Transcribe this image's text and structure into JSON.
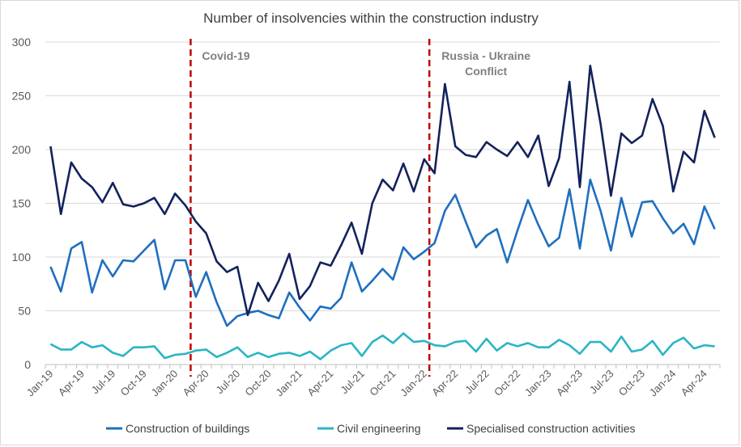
{
  "chart_data": {
    "type": "line",
    "title": "Number of insolvencies within the construction industry",
    "xlabel": "",
    "ylabel": "",
    "ylim": [
      0,
      300
    ],
    "yticks": [
      0,
      50,
      100,
      150,
      200,
      250,
      300
    ],
    "grid": "horizontal",
    "legend_position": "bottom",
    "x": [
      "Jan-19",
      "Feb-19",
      "Mar-19",
      "Apr-19",
      "May-19",
      "Jun-19",
      "Jul-19",
      "Aug-19",
      "Sep-19",
      "Oct-19",
      "Nov-19",
      "Dec-19",
      "Jan-20",
      "Feb-20",
      "Mar-20",
      "Apr-20",
      "May-20",
      "Jun-20",
      "Jul-20",
      "Aug-20",
      "Sep-20",
      "Oct-20",
      "Nov-20",
      "Dec-20",
      "Jan-21",
      "Feb-21",
      "Mar-21",
      "Apr-21",
      "May-21",
      "Jun-21",
      "Jul-21",
      "Aug-21",
      "Sep-21",
      "Oct-21",
      "Nov-21",
      "Dec-21",
      "Jan-22",
      "Feb-22",
      "Mar-22",
      "Apr-22",
      "May-22",
      "Jun-22",
      "Jul-22",
      "Aug-22",
      "Sep-22",
      "Oct-22",
      "Nov-22",
      "Dec-22",
      "Jan-23",
      "Feb-23",
      "Mar-23",
      "Apr-23",
      "May-23",
      "Jun-23",
      "Jul-23",
      "Aug-23",
      "Sep-23",
      "Oct-23",
      "Nov-23",
      "Dec-23",
      "Jan-24",
      "Feb-24",
      "Mar-24",
      "Apr-24",
      "May-24"
    ],
    "xtick_labels": [
      "Jan-19",
      "Apr-19",
      "Jul-19",
      "Oct-19",
      "Jan-20",
      "Apr-20",
      "Jul-20",
      "Oct-20",
      "Jan-21",
      "Apr-21",
      "Jul-21",
      "Oct-21",
      "Jan-22",
      "Apr-22",
      "Jul-22",
      "Oct-22",
      "Jan-23",
      "Apr-23",
      "Jul-23",
      "Oct-23",
      "Jan-24",
      "Apr-24"
    ],
    "series": [
      {
        "name": "Construction of buildings",
        "color": "#1f6fbf",
        "values": [
          91,
          68,
          108,
          114,
          67,
          97,
          82,
          97,
          96,
          106,
          116,
          70,
          97,
          97,
          63,
          86,
          58,
          36,
          45,
          48,
          50,
          46,
          43,
          67,
          53,
          41,
          54,
          52,
          62,
          95,
          68,
          78,
          89,
          79,
          109,
          98,
          105,
          113,
          143,
          158,
          133,
          109,
          120,
          126,
          95,
          125,
          153,
          130,
          110,
          118,
          163,
          108,
          172,
          143,
          106,
          155,
          119,
          151,
          152,
          136,
          122,
          131,
          112,
          147,
          126
        ]
      },
      {
        "name": "Civil engineering",
        "color": "#2ab5c5",
        "values": [
          19,
          14,
          14,
          21,
          16,
          18,
          11,
          8,
          16,
          16,
          17,
          6,
          9,
          10,
          13,
          14,
          7,
          11,
          16,
          7,
          11,
          7,
          10,
          11,
          8,
          12,
          5,
          13,
          18,
          20,
          8,
          21,
          27,
          20,
          29,
          21,
          22,
          18,
          17,
          21,
          22,
          12,
          24,
          13,
          20,
          17,
          20,
          16,
          16,
          23,
          18,
          10,
          21,
          21,
          12,
          26,
          12,
          14,
          22,
          9,
          20,
          25,
          15,
          18,
          17
        ]
      },
      {
        "name": "Specialised construction activities",
        "color": "#13225c",
        "values": [
          203,
          140,
          188,
          173,
          165,
          151,
          169,
          149,
          147,
          150,
          155,
          140,
          159,
          148,
          133,
          122,
          96,
          86,
          91,
          46,
          76,
          59,
          78,
          103,
          61,
          73,
          95,
          92,
          111,
          132,
          103,
          150,
          172,
          162,
          187,
          161,
          191,
          178,
          261,
          203,
          195,
          193,
          207,
          200,
          194,
          207,
          193,
          213,
          166,
          192,
          263,
          165,
          278,
          224,
          157,
          215,
          206,
          213,
          247,
          222,
          161,
          198,
          188,
          236,
          211
        ]
      }
    ],
    "annotations": [
      {
        "label_lines": [
          "Covid-19"
        ],
        "at": "Mar-20",
        "color": "#c00000",
        "style": "dashed"
      },
      {
        "label_lines": [
          "Russia - Ukraine",
          "Conflict"
        ],
        "at": "Feb-22",
        "color": "#c00000",
        "style": "dashed"
      }
    ]
  }
}
